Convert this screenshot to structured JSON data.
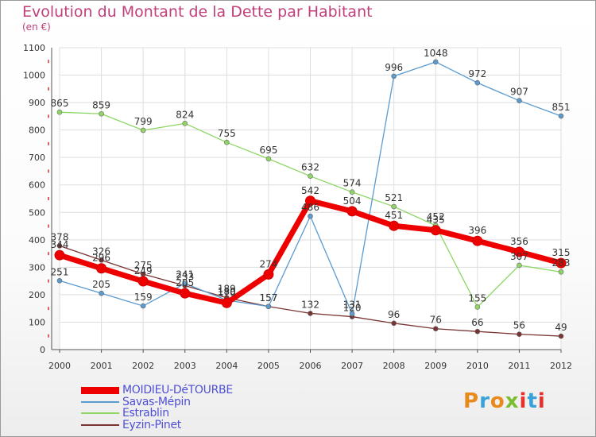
{
  "header": {
    "title": "Evolution du Montant de la Dette par Habitant",
    "subtitle": "(en €)"
  },
  "logo": {
    "text": "Proxiti",
    "colors": [
      "#e98a1d",
      "#3aa2d8",
      "#e98a1d",
      "#7bbd2f",
      "#e5302e",
      "#3aa2d8",
      "#e5302e"
    ]
  },
  "colors": {
    "title": "#c0407a",
    "legend_text": "#4f4fd6",
    "grid": "#dedede",
    "tick_marks": "#cc3333"
  },
  "chart_data": {
    "type": "line",
    "title": "Evolution du Montant de la Dette par Habitant",
    "subtitle": "(en €)",
    "xlabel": "",
    "ylabel": "",
    "ylim": [
      0,
      1100
    ],
    "yticks": [
      0,
      100,
      200,
      300,
      400,
      500,
      600,
      700,
      800,
      900,
      1000,
      1100
    ],
    "x": [
      "2000",
      "2001",
      "2002",
      "2003",
      "2004",
      "2005",
      "2006",
      "2007",
      "2008",
      "2009",
      "2010",
      "2011",
      "2012"
    ],
    "grid": true,
    "legend_position": "bottom-left",
    "series": [
      {
        "name": "MOIDIEU-DéTOURBE",
        "color": "#ee0000",
        "width": 7,
        "marker": 6,
        "values": [
          344,
          296,
          249,
          205,
          170,
          274,
          542,
          504,
          451,
          435,
          396,
          356,
          315
        ]
      },
      {
        "name": "Savas-Mépin",
        "color": "#5b9bd0",
        "width": 1.3,
        "marker": 3,
        "values": [
          251,
          205,
          159,
          241,
          180,
          157,
          486,
          131,
          996,
          1048,
          972,
          907,
          851
        ]
      },
      {
        "name": "Estrablin",
        "color": "#8fd667",
        "width": 1.3,
        "marker": 3,
        "values": [
          865,
          859,
          799,
          824,
          755,
          695,
          632,
          574,
          521,
          452,
          155,
          307,
          283
        ]
      },
      {
        "name": "Eyzin-Pinet",
        "color": "#7a3434",
        "width": 1.3,
        "marker": 3,
        "values": [
          378,
          326,
          275,
          233,
          189,
          157,
          132,
          120,
          96,
          76,
          66,
          56,
          49
        ]
      }
    ]
  }
}
